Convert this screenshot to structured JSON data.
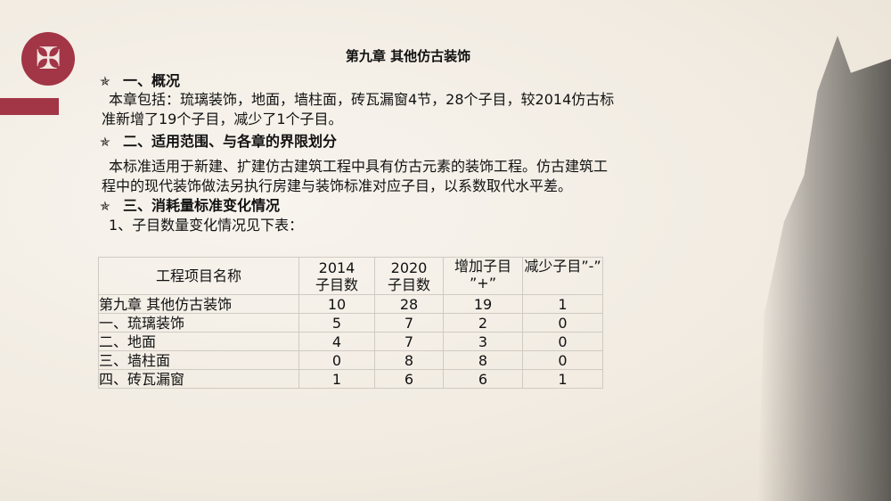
{
  "title": "第九章  其他仿古装饰",
  "sections": [
    {
      "heading": "一、概况",
      "lines": [
        "本章包括：琉璃装饰，地面，墙柱面，砖瓦漏窗4节，28个子目，较2014仿古标",
        "准新增了19个子目，减少了1个子目。"
      ]
    },
    {
      "heading": "二、适用范围、与各章的界限划分",
      "lines": [
        "本标准适用于新建、扩建仿古建筑工程中具有仿古元素的装饰工程。仿古建筑工",
        "程中的现代装饰做法另执行房建与装饰标准对应子目，以系数取代水平差。"
      ]
    },
    {
      "heading": "三、消耗量标准变化情况",
      "lines": [
        "1、子目数量变化情况见下表："
      ]
    }
  ],
  "table": {
    "headers": [
      "工程项目名称",
      "2014 子目数",
      "2020 子目数",
      "增加子目 ”+”",
      "减少子目”-”"
    ],
    "rows": [
      [
        "第九章 其他仿古装饰",
        "10",
        "28",
        "19",
        "1"
      ],
      [
        "一、琉璃装饰",
        "5",
        "7",
        "2",
        "0"
      ],
      [
        "二、地面",
        "4",
        "7",
        "3",
        "0"
      ],
      [
        "三、墙柱面",
        "0",
        "8",
        "8",
        "0"
      ],
      [
        "四、砖瓦漏窗",
        "1",
        "6",
        "6",
        "1"
      ]
    ]
  },
  "logo_text": "囍",
  "colors": {
    "accent": "#a23546"
  }
}
